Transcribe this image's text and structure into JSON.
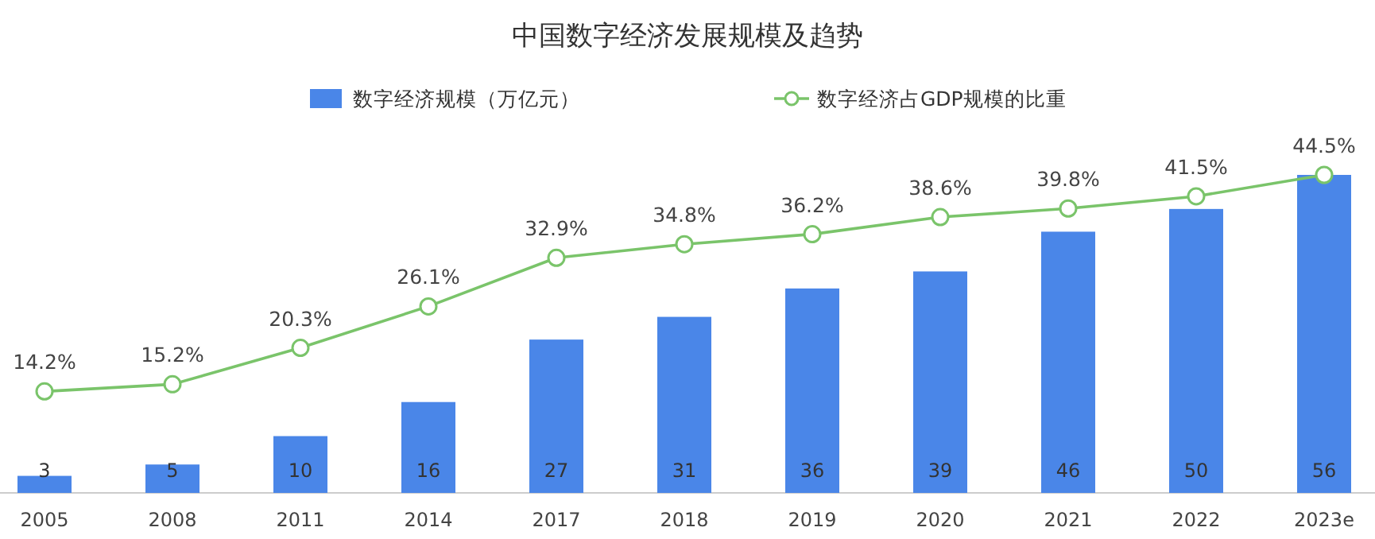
{
  "chart_data": {
    "type": "bar",
    "title": "中国数字经济发展规模及趋势",
    "categories": [
      "2005",
      "2008",
      "2011",
      "2014",
      "2017",
      "2018",
      "2019",
      "2020",
      "2021",
      "2022",
      "2023e"
    ],
    "series": [
      {
        "name": "数字经济规模（万亿元）",
        "color": "#4a86e8",
        "values": [
          3,
          5,
          10,
          16,
          27,
          31,
          36,
          39,
          46,
          50,
          56
        ],
        "value_labels": [
          "3",
          "5",
          "10",
          "16",
          "27",
          "31",
          "36",
          "39",
          "46",
          "50",
          "56"
        ]
      },
      {
        "name": "数字经济占GDP规模的比重",
        "type": "line",
        "axis": "y2",
        "color": "#7ac46a",
        "values": [
          14.2,
          15.2,
          20.3,
          26.1,
          32.9,
          34.8,
          36.2,
          38.6,
          39.8,
          41.5,
          44.5
        ],
        "value_labels": [
          "14.2%",
          "15.2%",
          "20.3%",
          "26.1%",
          "32.9%",
          "34.8%",
          "36.2%",
          "38.6%",
          "39.8%",
          "41.5%",
          "44.5%"
        ]
      }
    ],
    "legend": "top",
    "marker": "circle",
    "tick_labels": "x"
  }
}
